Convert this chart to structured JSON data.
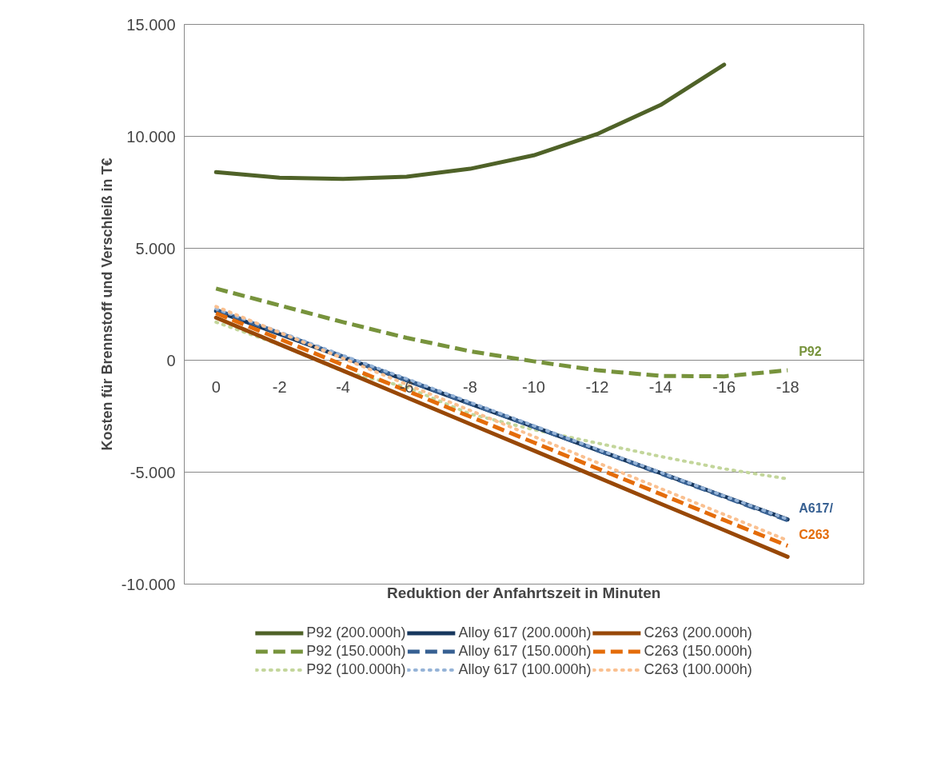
{
  "chart_data": {
    "type": "line",
    "xlabel": "Reduktion der Anfahrtszeit in Minuten",
    "ylabel": "Kosten für Brennstoff und Verschleiß in T€",
    "categories": [
      "0",
      "-2",
      "-4",
      "-6",
      "-8",
      "-10",
      "-12",
      "-14",
      "-16",
      "-18"
    ],
    "ylim": [
      -10000,
      15000
    ],
    "yticks": [
      {
        "value": -10000,
        "label": "-10.000"
      },
      {
        "value": -5000,
        "label": "-5.000"
      },
      0,
      {
        "value": 5000,
        "label": "5.000"
      },
      {
        "value": 10000,
        "label": "10.000"
      },
      {
        "value": 15000,
        "label": "15.000"
      }
    ],
    "grid": "y",
    "legend": "bottom",
    "series": [
      {
        "name": "P92 (200.000h)",
        "color": "#4f6228",
        "line_style": "solid",
        "values": [
          8400,
          8150,
          8100,
          8200,
          8550,
          9150,
          10100,
          11400,
          13200,
          null
        ]
      },
      {
        "name": "P92 (150.000h)",
        "color": "#77933c",
        "line_style": "dashed",
        "values": [
          3200,
          2450,
          1700,
          1000,
          400,
          -50,
          -450,
          -700,
          -720,
          -450
        ]
      },
      {
        "name": "P92 (100.000h)",
        "color": "#c3d69b",
        "line_style": "dotted",
        "values": [
          1700,
          700,
          -500,
          -1200,
          -2400,
          -3100,
          -3700,
          -4300,
          -4850,
          -5300
        ]
      },
      {
        "name": "Alloy 617 (200.000h)",
        "color": "#17375e",
        "line_style": "solid",
        "values": [
          2200,
          1170,
          130,
          -900,
          -1940,
          -2970,
          -4010,
          -5040,
          -6080,
          -7110
        ]
      },
      {
        "name": "Alloy 617 (150.000h)",
        "color": "#376092",
        "line_style": "dashed",
        "values": [
          2250,
          1210,
          160,
          -880,
          -1930,
          -2970,
          -4010,
          -5060,
          -6100,
          -7150
        ]
      },
      {
        "name": "Alloy 617 (100.000h)",
        "color": "#95b3d7",
        "line_style": "dotted",
        "values": [
          2300,
          1260,
          210,
          -830,
          -1880,
          -2920,
          -3970,
          -5010,
          -6060,
          -7100
        ]
      },
      {
        "name": "C263 (200.000h)",
        "color": "#984807",
        "line_style": "solid",
        "values": [
          1900,
          710,
          -470,
          -1660,
          -2850,
          -4030,
          -5220,
          -6410,
          -7590,
          -8780
        ]
      },
      {
        "name": "C263 (150.000h)",
        "color": "#e46c0a",
        "line_style": "dashed",
        "values": [
          2100,
          950,
          -210,
          -1360,
          -2520,
          -3670,
          -4830,
          -5980,
          -7140,
          -8290
        ]
      },
      {
        "name": "C263 (100.000h)",
        "color": "#fac090",
        "line_style": "dotted",
        "values": [
          2400,
          1240,
          80,
          -1080,
          -2240,
          -3400,
          -4570,
          -5730,
          -6890,
          -8050
        ]
      }
    ],
    "annotations": [
      "P92",
      "A617/",
      "C263"
    ]
  }
}
